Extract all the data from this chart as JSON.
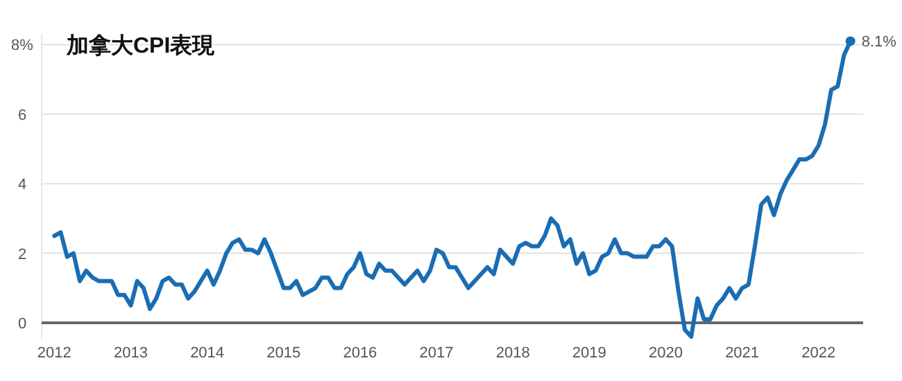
{
  "chart_data": {
    "type": "line",
    "title": "加拿大CPI表現",
    "grid": "y",
    "marker": "none",
    "line_style": "solid",
    "x": [
      "2012-01",
      "2012-02",
      "2012-03",
      "2012-04",
      "2012-05",
      "2012-06",
      "2012-07",
      "2012-08",
      "2012-09",
      "2012-10",
      "2012-11",
      "2012-12",
      "2013-01",
      "2013-02",
      "2013-03",
      "2013-04",
      "2013-05",
      "2013-06",
      "2013-07",
      "2013-08",
      "2013-09",
      "2013-10",
      "2013-11",
      "2013-12",
      "2014-01",
      "2014-02",
      "2014-03",
      "2014-04",
      "2014-05",
      "2014-06",
      "2014-07",
      "2014-08",
      "2014-09",
      "2014-10",
      "2014-11",
      "2014-12",
      "2015-01",
      "2015-02",
      "2015-03",
      "2015-04",
      "2015-05",
      "2015-06",
      "2015-07",
      "2015-08",
      "2015-09",
      "2015-10",
      "2015-11",
      "2015-12",
      "2016-01",
      "2016-02",
      "2016-03",
      "2016-04",
      "2016-05",
      "2016-06",
      "2016-07",
      "2016-08",
      "2016-09",
      "2016-10",
      "2016-11",
      "2016-12",
      "2017-01",
      "2017-02",
      "2017-03",
      "2017-04",
      "2017-05",
      "2017-06",
      "2017-07",
      "2017-08",
      "2017-09",
      "2017-10",
      "2017-11",
      "2017-12",
      "2018-01",
      "2018-02",
      "2018-03",
      "2018-04",
      "2018-05",
      "2018-06",
      "2018-07",
      "2018-08",
      "2018-09",
      "2018-10",
      "2018-11",
      "2018-12",
      "2019-01",
      "2019-02",
      "2019-03",
      "2019-04",
      "2019-05",
      "2019-06",
      "2019-07",
      "2019-08",
      "2019-09",
      "2019-10",
      "2019-11",
      "2019-12",
      "2020-01",
      "2020-02",
      "2020-03",
      "2020-04",
      "2020-05",
      "2020-06",
      "2020-07",
      "2020-08",
      "2020-09",
      "2020-10",
      "2020-11",
      "2020-12",
      "2021-01",
      "2021-02",
      "2021-03",
      "2021-04",
      "2021-05",
      "2021-06",
      "2021-07",
      "2021-08",
      "2021-09",
      "2021-10",
      "2021-11",
      "2021-12",
      "2022-01",
      "2022-02",
      "2022-03",
      "2022-04",
      "2022-05",
      "2022-06"
    ],
    "series": [
      {
        "color": "#1a6db3",
        "values": [
          2.5,
          2.6,
          1.9,
          2.0,
          1.2,
          1.5,
          1.3,
          1.2,
          1.2,
          1.2,
          0.8,
          0.8,
          0.5,
          1.2,
          1.0,
          0.4,
          0.7,
          1.2,
          1.3,
          1.1,
          1.1,
          0.7,
          0.9,
          1.2,
          1.5,
          1.1,
          1.5,
          2.0,
          2.3,
          2.4,
          2.1,
          2.1,
          2.0,
          2.4,
          2.0,
          1.5,
          1.0,
          1.0,
          1.2,
          0.8,
          0.9,
          1.0,
          1.3,
          1.3,
          1.0,
          1.0,
          1.4,
          1.6,
          2.0,
          1.4,
          1.3,
          1.7,
          1.5,
          1.5,
          1.3,
          1.1,
          1.3,
          1.5,
          1.2,
          1.5,
          2.1,
          2.0,
          1.6,
          1.6,
          1.3,
          1.0,
          1.2,
          1.4,
          1.6,
          1.4,
          2.1,
          1.9,
          1.7,
          2.2,
          2.3,
          2.2,
          2.2,
          2.5,
          3.0,
          2.8,
          2.2,
          2.4,
          1.7,
          2.0,
          1.4,
          1.5,
          1.9,
          2.0,
          2.4,
          2.0,
          2.0,
          1.9,
          1.9,
          1.9,
          2.2,
          2.2,
          2.4,
          2.2,
          0.9,
          -0.2,
          -0.4,
          0.7,
          0.1,
          0.1,
          0.5,
          0.7,
          1.0,
          0.7,
          1.0,
          1.1,
          2.2,
          3.4,
          3.6,
          3.1,
          3.7,
          4.1,
          4.4,
          4.7,
          4.7,
          4.8,
          5.1,
          5.7,
          6.7,
          6.8,
          7.7,
          8.1
        ]
      }
    ],
    "xlim": [
      "2011-11",
      "2022-08"
    ],
    "xticks": [
      "2012",
      "2013",
      "2014",
      "2015",
      "2016",
      "2017",
      "2018",
      "2019",
      "2020",
      "2021",
      "2022"
    ],
    "ylim": [
      -0.5,
      8.3
    ],
    "yticks": [
      0,
      2,
      4,
      6,
      {
        "value": 8,
        "label": "8%"
      }
    ],
    "annotations": [
      {
        "text": "8.1%",
        "x": "2022-06",
        "y": 8.1
      }
    ]
  }
}
